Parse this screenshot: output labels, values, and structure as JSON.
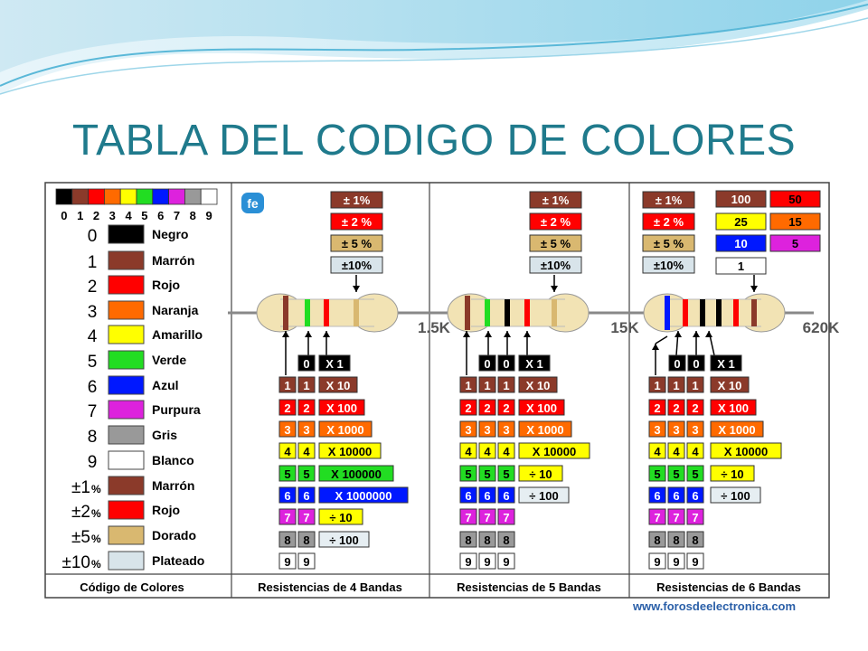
{
  "slide": {
    "title": "TABLA DEL CODIGO DE COLORES",
    "url": "www.forosdeelectronica.com"
  },
  "legend": {
    "digits": [
      "0",
      "1",
      "2",
      "3",
      "4",
      "5",
      "6",
      "7",
      "8",
      "9"
    ],
    "rows": [
      {
        "key": "0",
        "name": "Negro",
        "color": "#000000"
      },
      {
        "key": "1",
        "name": "Marrón",
        "color": "#8b3a2a"
      },
      {
        "key": "2",
        "name": "Rojo",
        "color": "#ff0000"
      },
      {
        "key": "3",
        "name": "Naranja",
        "color": "#ff6a00"
      },
      {
        "key": "4",
        "name": "Amarillo",
        "color": "#ffff00"
      },
      {
        "key": "5",
        "name": "Verde",
        "color": "#22dd22"
      },
      {
        "key": "6",
        "name": "Azul",
        "color": "#0018ff"
      },
      {
        "key": "7",
        "name": "Purpura",
        "color": "#dd22dd"
      },
      {
        "key": "8",
        "name": "Gris",
        "color": "#999999"
      },
      {
        "key": "9",
        "name": "Blanco",
        "color": "#ffffff"
      },
      {
        "key": "±1",
        "suffix": "%",
        "name": "Marrón",
        "color": "#8b3a2a"
      },
      {
        "key": "±2",
        "suffix": "%",
        "name": "Rojo",
        "color": "#ff0000"
      },
      {
        "key": "±5",
        "suffix": "%",
        "name": "Dorado",
        "color": "#d9b870"
      },
      {
        "key": "±10",
        "suffix": "%",
        "name": "Plateado",
        "color": "#d8e4ea"
      }
    ]
  },
  "tolerances": [
    {
      "label": "± 1%",
      "color": "#8b3a2a",
      "text": "#ffffff"
    },
    {
      "label": "± 2 %",
      "color": "#ff0000",
      "text": "#ffffff"
    },
    {
      "label": "± 5 %",
      "color": "#d9b870",
      "text": "#000000"
    },
    {
      "label": "±10%",
      "color": "#d8e4ea",
      "text": "#000000"
    }
  ],
  "tempco": [
    {
      "label": "100",
      "color": "#8b3a2a",
      "text": "#ffffff"
    },
    {
      "label": "50",
      "color": "#ff0000",
      "text": "#000000"
    },
    {
      "label": "25",
      "color": "#ffff00",
      "text": "#000000"
    },
    {
      "label": "15",
      "color": "#ff6a00",
      "text": "#000000"
    },
    {
      "label": "10",
      "color": "#0018ff",
      "text": "#ffffff"
    },
    {
      "label": "5",
      "color": "#dd22dd",
      "text": "#000000"
    },
    {
      "label": "1",
      "color": "#ffffff",
      "text": "#000000"
    }
  ],
  "digit_colors": [
    "#000000",
    "#8b3a2a",
    "#ff0000",
    "#ff6a00",
    "#ffff00",
    "#22dd22",
    "#0018ff",
    "#dd22dd",
    "#999999",
    "#ffffff"
  ],
  "digit_text": [
    "#ffffff",
    "#ffffff",
    "#ffffff",
    "#ffffff",
    "#000000",
    "#000000",
    "#ffffff",
    "#ffffff",
    "#000000",
    "#000000"
  ],
  "mult4": [
    "X 1",
    "X 10",
    "X 100",
    "X 1000",
    "X 10000",
    "X 100000",
    "X 1000000",
    "÷ 10",
    "÷ 100"
  ],
  "mult5": [
    "X 1",
    "X 10",
    "X 100",
    "X 1000",
    "X 10000",
    "÷ 10",
    "÷ 100"
  ],
  "panels": [
    {
      "caption": "Resistencias de 4 Bandas",
      "value": "1.5K",
      "digits": 2
    },
    {
      "caption": "Resistencias de 5 Bandas",
      "value": "15K",
      "digits": 3
    },
    {
      "caption": "Resistencias de 6 Bandas",
      "value": "620K",
      "digits": 3
    }
  ],
  "legend_caption": "Código de Colores",
  "logo": "fe"
}
